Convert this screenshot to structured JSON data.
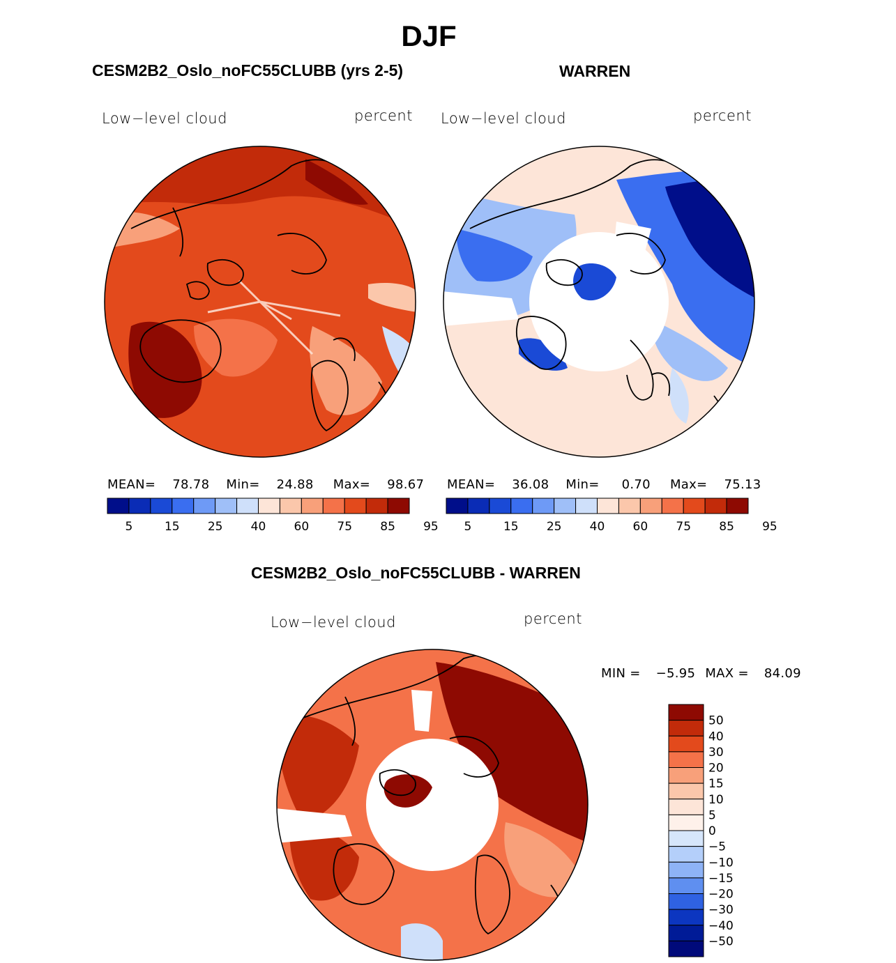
{
  "title": "DJF",
  "panels": [
    {
      "title": "CESM2B2_Oslo_noFC55CLUBB (yrs 2-5)",
      "variable": "Low−level cloud",
      "units": "percent",
      "stats": {
        "mean_label": "MEAN=",
        "mean": "78.78",
        "min_label": "Min=",
        "min": "24.88",
        "max_label": "Max=",
        "max": "98.67"
      }
    },
    {
      "title": "WARREN",
      "variable": "Low−level cloud",
      "units": "percent",
      "stats": {
        "mean_label": "MEAN=",
        "mean": "36.08",
        "min_label": "Min=",
        "min": "0.70",
        "max_label": "Max=",
        "max": "75.13"
      }
    }
  ],
  "diff_panel": {
    "title": "CESM2B2_Oslo_noFC55CLUBB - WARREN",
    "variable": "Low−level cloud",
    "units": "percent",
    "min_label": "MIN =",
    "min": "−5.95",
    "max_label": "MAX =",
    "max": "84.09"
  },
  "chart_data": [
    {
      "type": "heatmap",
      "projection": "north-polar-stereographic",
      "title": "CESM2B2_Oslo_noFC55CLUBB (yrs 2-5)",
      "variable": "Low-level cloud",
      "units": "percent",
      "mean": 78.78,
      "min": 24.88,
      "max": 98.67,
      "colorbar": {
        "orientation": "horizontal",
        "tick_labels": [
          "5",
          "15",
          "25",
          "40",
          "60",
          "75",
          "85",
          "95"
        ],
        "colors": [
          "#000e8a",
          "#0a2cb6",
          "#1a4ad6",
          "#3a6ef0",
          "#6e9af6",
          "#9fbff8",
          "#cfe0fa",
          "#fde5d8",
          "#fbc7ab",
          "#f8a07a",
          "#f47249",
          "#e34a1c",
          "#c22b0a",
          "#8e0a02"
        ]
      }
    },
    {
      "type": "heatmap",
      "projection": "north-polar-stereographic",
      "title": "WARREN",
      "variable": "Low-level cloud",
      "units": "percent",
      "mean": 36.08,
      "min": 0.7,
      "max": 75.13,
      "colorbar": {
        "orientation": "horizontal",
        "tick_labels": [
          "5",
          "15",
          "25",
          "40",
          "60",
          "75",
          "85",
          "95"
        ],
        "colors": [
          "#000e8a",
          "#0a2cb6",
          "#1a4ad6",
          "#3a6ef0",
          "#6e9af6",
          "#9fbff8",
          "#cfe0fa",
          "#fde5d8",
          "#fbc7ab",
          "#f8a07a",
          "#f47249",
          "#e34a1c",
          "#c22b0a",
          "#8e0a02"
        ]
      }
    },
    {
      "type": "heatmap",
      "projection": "north-polar-stereographic",
      "title": "CESM2B2_Oslo_noFC55CLUBB - WARREN",
      "variable": "Low-level cloud",
      "units": "percent",
      "min": -5.95,
      "max": 84.09,
      "colorbar": {
        "orientation": "vertical",
        "tick_labels": [
          "50",
          "40",
          "30",
          "20",
          "15",
          "10",
          "5",
          "0",
          "−5",
          "−10",
          "−15",
          "−20",
          "−30",
          "−40",
          "−50"
        ],
        "colors": [
          "#8e0a02",
          "#c22b0a",
          "#e34a1c",
          "#f47249",
          "#f8a07a",
          "#fbc7ab",
          "#fde5d8",
          "#fef1ea",
          "#d6e6fb",
          "#b4cffa",
          "#8eb3f6",
          "#5f8ff0",
          "#2f62e2",
          "#0c36c0",
          "#001b97",
          "#000a7a"
        ]
      }
    }
  ]
}
